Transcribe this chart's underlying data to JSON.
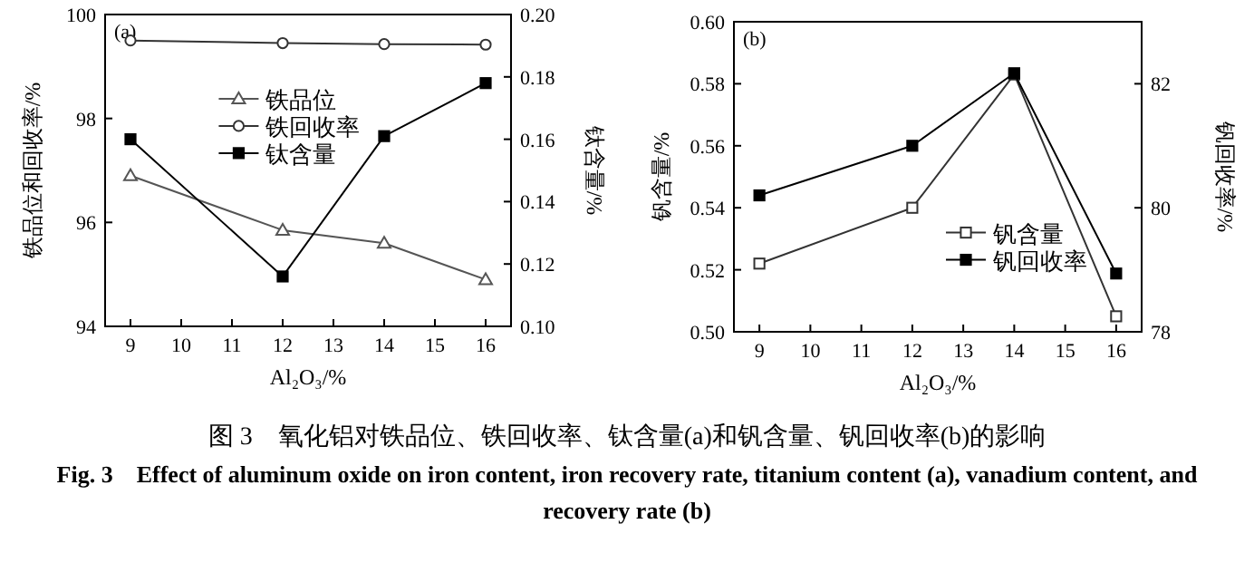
{
  "chart_data": [
    {
      "type": "line",
      "xlabel": "Al₂O₃/%",
      "ylabel": "铁品位和回收率/%",
      "y2label": "钛含量/%",
      "annotations": [
        "(a)"
      ],
      "x": [
        9,
        12,
        14,
        16
      ],
      "xlim": [
        8.5,
        16.5
      ],
      "xticks": [
        9,
        10,
        11,
        12,
        13,
        14,
        15,
        16
      ],
      "ylim": [
        94,
        100
      ],
      "yticks": [
        94,
        96,
        98,
        100
      ],
      "y2lim": [
        0.1,
        0.2
      ],
      "y2ticks": [
        {
          "value": 0.1,
          "label": "0.10"
        },
        0.12,
        0.14,
        0.16,
        0.18,
        {
          "value": 0.2,
          "label": "0.20"
        }
      ],
      "legend": "center",
      "grid": false,
      "series": [
        {
          "name": "铁品位",
          "color": "#555555",
          "marker": "triangle",
          "values": [
            96.9,
            95.85,
            95.6,
            94.9
          ]
        },
        {
          "name": "铁回收率",
          "color": "#333333",
          "marker": "circle",
          "values": [
            99.5,
            99.45,
            99.43,
            99.42
          ]
        },
        {
          "name": "钛含量",
          "color": "#000000",
          "marker": "square",
          "axis": "y2",
          "values": [
            0.16,
            0.116,
            0.161,
            0.178
          ]
        }
      ]
    },
    {
      "type": "line",
      "xlabel": "Al₂O₃/%",
      "ylabel": "钒含量/%",
      "y2label": "钒回收率/%",
      "annotations": [
        "(b)"
      ],
      "x": [
        9,
        12,
        14,
        16
      ],
      "xlim": [
        8.5,
        16.5
      ],
      "xticks": [
        9,
        10,
        11,
        12,
        13,
        14,
        15,
        16
      ],
      "ylim": [
        0.5,
        0.6
      ],
      "yticks": [
        {
          "value": 0.5,
          "label": "0.50"
        },
        0.52,
        0.54,
        0.56,
        0.58,
        {
          "value": 0.6,
          "label": "0.60"
        }
      ],
      "y2lim": [
        78,
        83
      ],
      "y2ticks": [
        78,
        80,
        82
      ],
      "legend": "bottom right",
      "grid": false,
      "series": [
        {
          "name": "钒含量",
          "color": "#333333",
          "marker": "square",
          "values": [
            0.522,
            0.54,
            0.583,
            0.505
          ]
        },
        {
          "name": "钒回收率",
          "color": "#000000",
          "marker": "square",
          "axis": "y2",
          "values": [
            80.2,
            81.0,
            82.17,
            78.94
          ]
        }
      ]
    },
    {
      "type": "other",
      "annotations": [
        "图 3　氧化铝对铁品位、铁回收率、钛含量(a)和钒含量、钒回收率(b)的影响",
        "Fig. 3　Effect of aluminum oxide on iron content, iron recovery rate, titanium content (a), vanadium content, and recovery rate (b)"
      ]
    }
  ]
}
